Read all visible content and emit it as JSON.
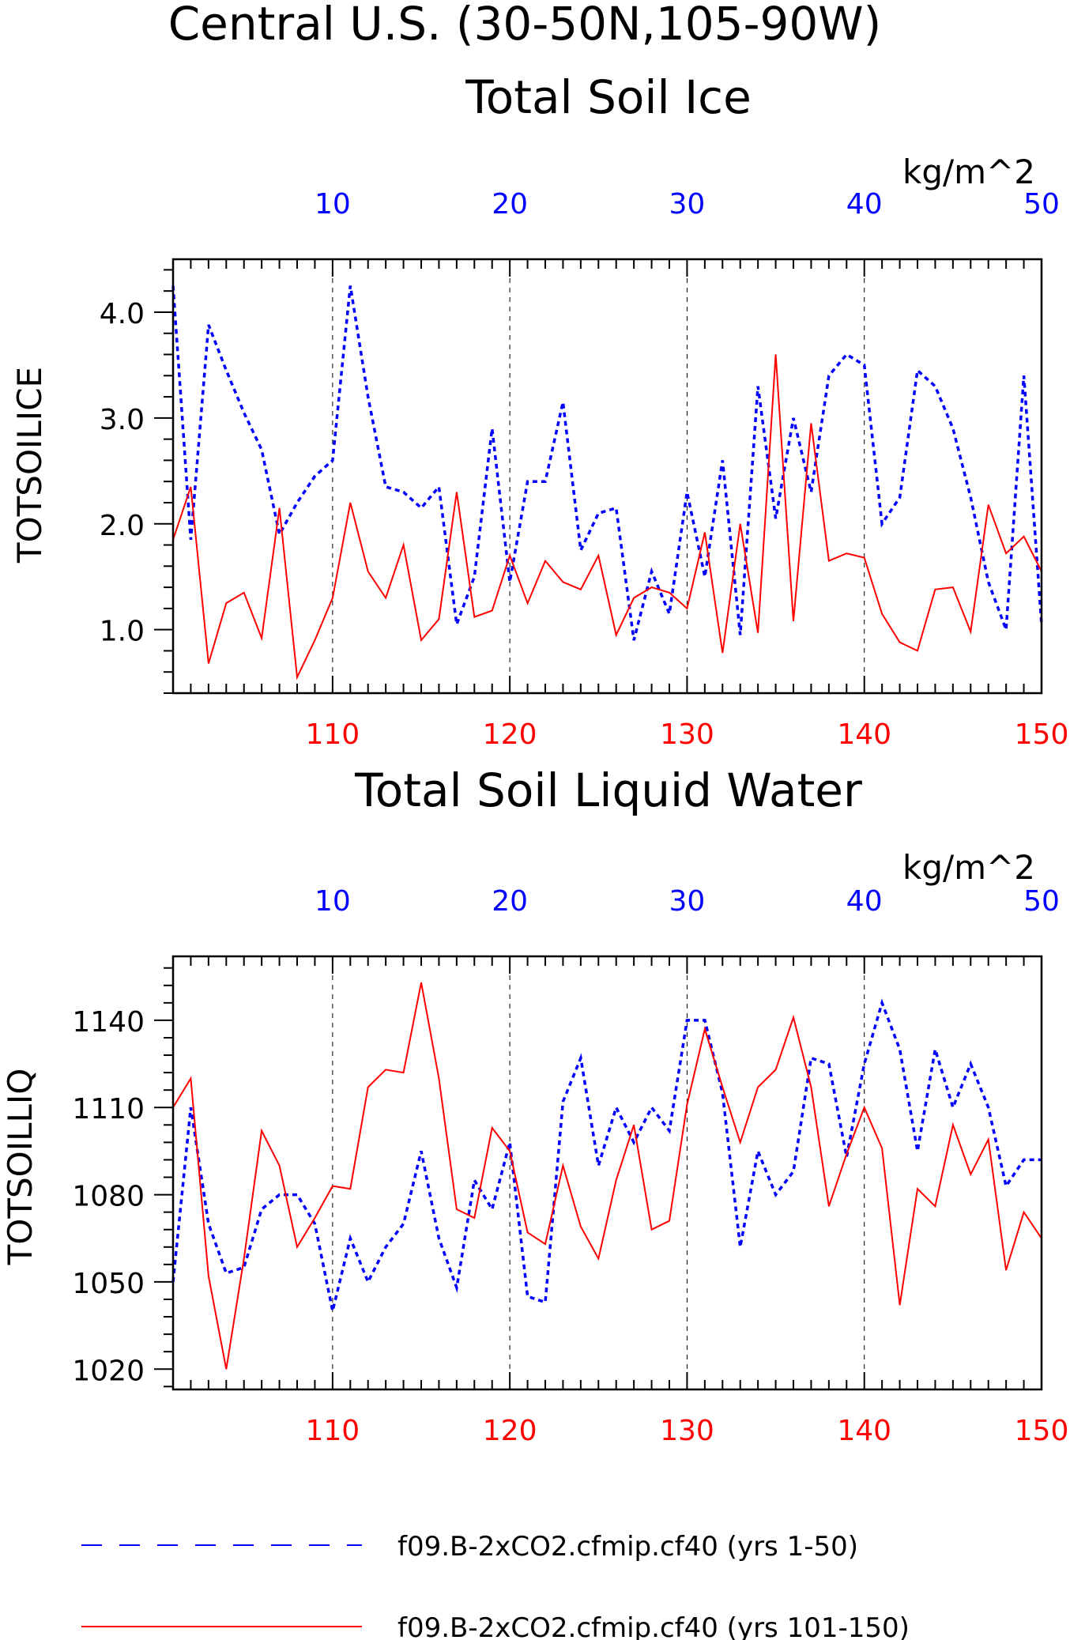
{
  "figure": {
    "title": "Central U.S. (30-50N,105-90W)",
    "colors": {
      "top_series": "#0000ff",
      "bottom_series": "#ff0000",
      "axes": "#000000"
    }
  },
  "legend": {
    "items": [
      {
        "label": "f09.B-2xCO2.cfmip.cf40 (yrs 1-50)",
        "color": "#0000ff",
        "style": "dashed"
      },
      {
        "label": "f09.B-2xCO2.cfmip.cf40 (yrs 101-150)",
        "color": "#ff0000",
        "style": "solid"
      }
    ]
  },
  "chart_data": [
    {
      "type": "line",
      "title": "Total Soil Ice",
      "units": "kg/m^2",
      "ylabel": "TOTSOILICE",
      "ylim": [
        0.4,
        4.5
      ],
      "yticks": [
        1.0,
        2.0,
        3.0,
        4.0
      ],
      "ytick_labels": [
        "1.0",
        "2.0",
        "3.0",
        "4.0"
      ],
      "grid": "dashed vertical lines at x = 10, 20, 30, 40",
      "top_axis": {
        "label_color": "blue",
        "range": [
          1,
          50
        ],
        "ticks": [
          10,
          20,
          30,
          40,
          50
        ]
      },
      "bottom_axis": {
        "label_color": "red",
        "range": [
          101,
          150
        ],
        "ticks": [
          110,
          120,
          130,
          140,
          150
        ]
      },
      "series": [
        {
          "name": "f09.B-2xCO2.cfmip.cf40 (yrs 1-50)",
          "axis": "top",
          "x": [
            1,
            2,
            3,
            4,
            5,
            6,
            7,
            8,
            9,
            10,
            11,
            12,
            13,
            14,
            15,
            16,
            17,
            18,
            19,
            20,
            21,
            22,
            23,
            24,
            25,
            26,
            27,
            28,
            29,
            30,
            31,
            32,
            33,
            34,
            35,
            36,
            37,
            38,
            39,
            40,
            41,
            42,
            43,
            44,
            45,
            46,
            47,
            48,
            49,
            50
          ],
          "values": [
            4.25,
            1.85,
            3.88,
            3.45,
            3.05,
            2.7,
            1.9,
            2.2,
            2.45,
            2.6,
            4.25,
            3.2,
            2.35,
            2.3,
            2.15,
            2.35,
            1.05,
            1.5,
            2.9,
            1.45,
            2.4,
            2.4,
            3.15,
            1.75,
            2.1,
            2.15,
            0.9,
            1.55,
            1.15,
            2.3,
            1.5,
            2.6,
            0.95,
            3.3,
            2.05,
            3.0,
            2.3,
            3.4,
            3.6,
            3.5,
            2.0,
            2.25,
            3.45,
            3.3,
            2.9,
            2.25,
            1.45,
            1.0,
            3.4,
            1.05
          ]
        },
        {
          "name": "f09.B-2xCO2.cfmip.cf40 (yrs 101-150)",
          "axis": "bottom",
          "x": [
            101,
            102,
            103,
            104,
            105,
            106,
            107,
            108,
            109,
            110,
            111,
            112,
            113,
            114,
            115,
            116,
            117,
            118,
            119,
            120,
            121,
            122,
            123,
            124,
            125,
            126,
            127,
            128,
            129,
            130,
            131,
            132,
            133,
            134,
            135,
            136,
            137,
            138,
            139,
            140,
            141,
            142,
            143,
            144,
            145,
            146,
            147,
            148,
            149,
            150
          ],
          "values": [
            1.85,
            2.35,
            0.68,
            1.25,
            1.35,
            0.92,
            2.15,
            0.55,
            0.9,
            1.3,
            2.2,
            1.55,
            1.3,
            1.8,
            0.9,
            1.1,
            2.3,
            1.12,
            1.18,
            1.7,
            1.25,
            1.65,
            1.45,
            1.38,
            1.7,
            0.95,
            1.3,
            1.4,
            1.35,
            1.2,
            1.92,
            0.78,
            2.0,
            0.97,
            3.6,
            1.08,
            2.95,
            1.65,
            1.72,
            1.68,
            1.15,
            0.88,
            0.8,
            1.38,
            1.4,
            0.98,
            2.18,
            1.72,
            1.88,
            1.55
          ]
        }
      ]
    },
    {
      "type": "line",
      "title": "Total Soil Liquid Water",
      "units": "kg/m^2",
      "ylabel": "TOTSOILLIQ",
      "ylim": [
        1013,
        1162
      ],
      "yticks": [
        1020,
        1050,
        1080,
        1110,
        1140
      ],
      "ytick_labels": [
        "1020",
        "1050",
        "1080",
        "1110",
        "1140"
      ],
      "grid": "dashed vertical lines at x = 10, 20, 30, 40",
      "top_axis": {
        "label_color": "blue",
        "range": [
          1,
          50
        ],
        "ticks": [
          10,
          20,
          30,
          40,
          50
        ]
      },
      "bottom_axis": {
        "label_color": "red",
        "range": [
          101,
          150
        ],
        "ticks": [
          110,
          120,
          130,
          140,
          150
        ]
      },
      "series": [
        {
          "name": "f09.B-2xCO2.cfmip.cf40 (yrs 1-50)",
          "axis": "top",
          "x": [
            1,
            2,
            3,
            4,
            5,
            6,
            7,
            8,
            9,
            10,
            11,
            12,
            13,
            14,
            15,
            16,
            17,
            18,
            19,
            20,
            21,
            22,
            23,
            24,
            25,
            26,
            27,
            28,
            29,
            30,
            31,
            32,
            33,
            34,
            35,
            36,
            37,
            38,
            39,
            40,
            41,
            42,
            43,
            44,
            45,
            46,
            47,
            48,
            49,
            50
          ],
          "values": [
            1050,
            1110,
            1070,
            1053,
            1055,
            1075,
            1080,
            1080,
            1070,
            1040,
            1065,
            1050,
            1062,
            1070,
            1095,
            1065,
            1048,
            1085,
            1075,
            1098,
            1045,
            1043,
            1112,
            1127,
            1090,
            1110,
            1098,
            1110,
            1102,
            1140,
            1140,
            1115,
            1062,
            1095,
            1080,
            1088,
            1127,
            1125,
            1093,
            1125,
            1146,
            1130,
            1095,
            1130,
            1110,
            1125,
            1110,
            1083,
            1092,
            1092
          ]
        },
        {
          "name": "f09.B-2xCO2.cfmip.cf40 (yrs 101-150)",
          "axis": "bottom",
          "x": [
            101,
            102,
            103,
            104,
            105,
            106,
            107,
            108,
            109,
            110,
            111,
            112,
            113,
            114,
            115,
            116,
            117,
            118,
            119,
            120,
            121,
            122,
            123,
            124,
            125,
            126,
            127,
            128,
            129,
            130,
            131,
            132,
            133,
            134,
            135,
            136,
            137,
            138,
            139,
            140,
            141,
            142,
            143,
            144,
            145,
            146,
            147,
            148,
            149,
            150
          ],
          "values": [
            1110,
            1120,
            1052,
            1020,
            1058,
            1102,
            1090,
            1062,
            1072,
            1083,
            1082,
            1117,
            1123,
            1122,
            1153,
            1120,
            1075,
            1072,
            1103,
            1095,
            1067,
            1063,
            1090,
            1069,
            1058,
            1085,
            1104,
            1068,
            1071,
            1111,
            1137,
            1117,
            1098,
            1117,
            1123,
            1141,
            1117,
            1076,
            1094,
            1110,
            1096,
            1042,
            1082,
            1076,
            1104,
            1087,
            1099,
            1054,
            1074,
            1065
          ]
        }
      ]
    }
  ]
}
